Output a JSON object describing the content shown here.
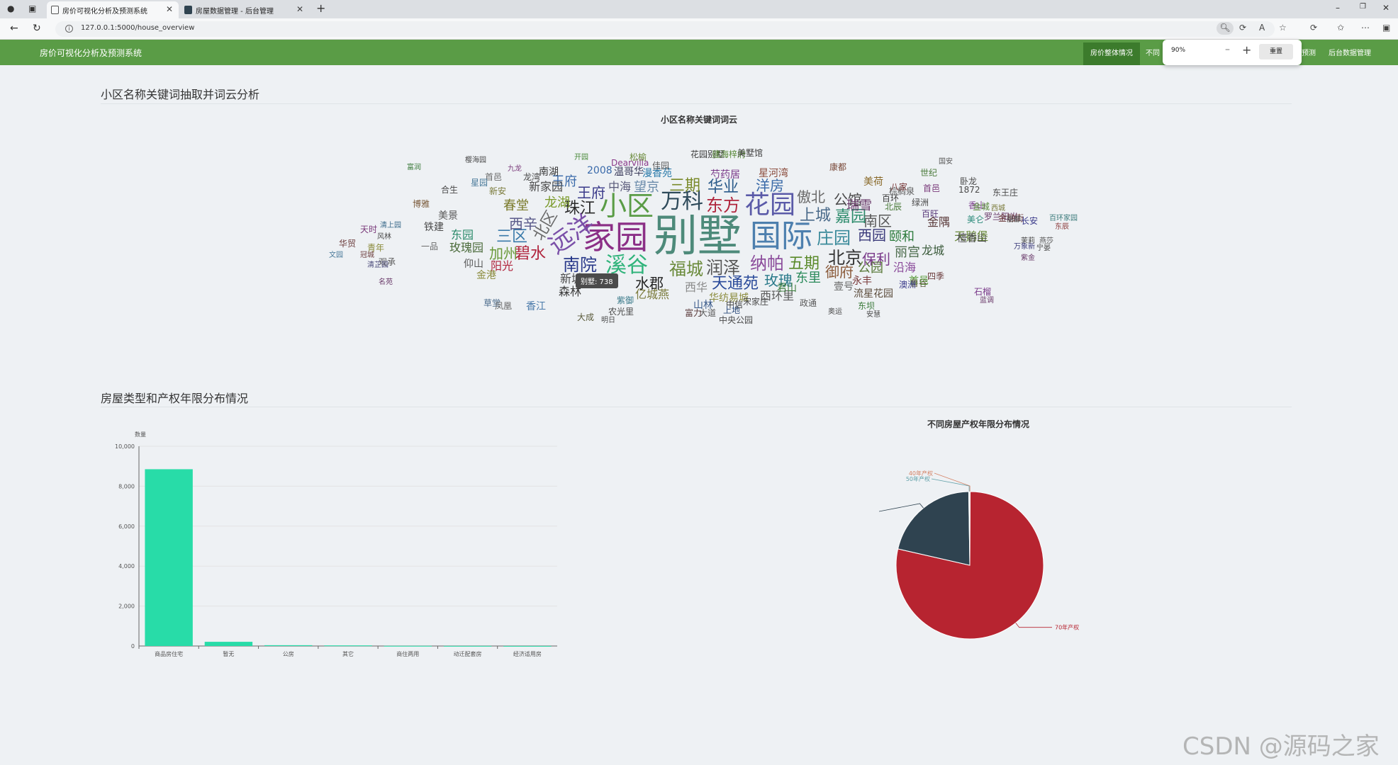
{
  "browser": {
    "tabs": [
      {
        "label": "房价可视化分析及预测系统"
      },
      {
        "label": "房屋数据管理 - 后台管理"
      }
    ],
    "url": "127.0.0.1:5000/house_overview",
    "zoom": {
      "percent": "90%",
      "reset_label": "重置"
    }
  },
  "app": {
    "brand": "房价可视化分析及预测系统",
    "menu": [
      "房价整体情况",
      "不同",
      "预测",
      "后台数据管理"
    ]
  },
  "section1": {
    "title": "小区名称关键词抽取并词云分析",
    "chart_title": "小区名称关键词词云",
    "tooltip": "别墅: 738"
  },
  "section2": {
    "title": "房屋类型和产权年限分布情况"
  },
  "wordcloud": [
    {
      "t": "别墅",
      "c": "#4d8a7a"
    },
    {
      "t": "家园",
      "c": "#8b2f86"
    },
    {
      "t": "国际",
      "c": "#4d7fae"
    },
    {
      "t": "小区",
      "c": "#5a9c46"
    },
    {
      "t": "花园",
      "c": "#5a5aa8"
    },
    {
      "t": "万科",
      "c": "#2e4a5a"
    },
    {
      "t": "东方",
      "c": "#b0243c"
    },
    {
      "t": "溪谷",
      "c": "#2fb37a"
    },
    {
      "t": "远洋",
      "c": "#7a4fa8"
    },
    {
      "t": "庄园",
      "c": "#3a8a9a"
    },
    {
      "t": "北京",
      "c": "#333333"
    },
    {
      "t": "纳帕",
      "c": "#8a4a9a"
    },
    {
      "t": "润泽",
      "c": "#555555"
    },
    {
      "t": "福城",
      "c": "#6a8a3a"
    },
    {
      "t": "南院",
      "c": "#2a3a8a"
    },
    {
      "t": "上城",
      "c": "#4a6a8a"
    },
    {
      "t": "嘉园",
      "c": "#2a8a6a"
    },
    {
      "t": "五期",
      "c": "#5a8a2a"
    },
    {
      "t": "天通苑",
      "c": "#2a4a9a"
    },
    {
      "t": "三区",
      "c": "#3a7aaa"
    },
    {
      "t": "北区",
      "c": "#6a6a6a"
    },
    {
      "t": "珠江",
      "c": "#2a2a2a"
    },
    {
      "t": "碧水",
      "c": "#b0243c"
    },
    {
      "t": "加州",
      "c": "#6a9a3a"
    },
    {
      "t": "华业",
      "c": "#2a5a8a"
    },
    {
      "t": "三期",
      "c": "#7a8a2a"
    },
    {
      "t": "洋房",
      "c": "#3a6aa8"
    },
    {
      "t": "傲北",
      "c": "#6a6a6a"
    },
    {
      "t": "公馆",
      "c": "#4a4a4a"
    },
    {
      "t": "保利",
      "c": "#7a3a8a"
    },
    {
      "t": "西园",
      "c": "#3a3a7a"
    },
    {
      "t": "南区",
      "c": "#5a5a5a"
    },
    {
      "t": "玫瑰",
      "c": "#2a7a8a"
    },
    {
      "t": "御府",
      "c": "#8a5a3a"
    },
    {
      "t": "公园",
      "c": "#5a7a3a"
    },
    {
      "t": "水郡",
      "c": "#222222"
    },
    {
      "t": "东里",
      "c": "#2a8a5a"
    },
    {
      "t": "丽宫",
      "c": "#4a6a4a"
    },
    {
      "t": "颐和",
      "c": "#2a7a3a"
    },
    {
      "t": "龙城",
      "c": "#3a5a3a"
    },
    {
      "t": "金隅",
      "c": "#5a3a3a"
    },
    {
      "t": "玉府",
      "c": "#3a6aaa"
    },
    {
      "t": "王府",
      "c": "#3a3a8a"
    },
    {
      "t": "望京",
      "c": "#6a8aaa"
    },
    {
      "t": "中海",
      "c": "#5a5a7a"
    },
    {
      "t": "龙湖",
      "c": "#7a9a2a"
    },
    {
      "t": "西辛",
      "c": "#5a5a8a"
    },
    {
      "t": "春堂",
      "c": "#7a7a2a"
    },
    {
      "t": "新家园",
      "c": "#4a4a4a"
    },
    {
      "t": "天鹅堡",
      "c": "#6a8a3a"
    },
    {
      "t": "檀香山",
      "c": "#4a4a4a"
    },
    {
      "t": "瑞雪",
      "c": "#6a3a6a"
    },
    {
      "t": "沿海",
      "c": "#8a4a9a"
    },
    {
      "t": "首邑",
      "c": "#5a9a3a"
    },
    {
      "t": "西华",
      "c": "#8a8a8a"
    },
    {
      "t": "亿城燕",
      "c": "#7a7a3a"
    },
    {
      "t": "森林",
      "c": "#3a3a3a"
    },
    {
      "t": "新城",
      "c": "#4a4a4a"
    },
    {
      "t": "阳光",
      "c": "#b0243c"
    },
    {
      "t": "玫瑰园",
      "c": "#4a6a3a"
    },
    {
      "t": "铁建",
      "c": "#4a4a4a"
    },
    {
      "t": "东园",
      "c": "#2a8a6a"
    },
    {
      "t": "美景",
      "c": "#5a5a5a"
    },
    {
      "t": "香江",
      "c": "#4a7aaa"
    },
    {
      "t": "永丰",
      "c": "#7a3a3a"
    },
    {
      "t": "西环里",
      "c": "#5a5a5a"
    },
    {
      "t": "君山",
      "c": "#3a7a3a"
    },
    {
      "t": "壹号",
      "c": "#6a6a6a"
    },
    {
      "t": "流星花园",
      "c": "#5a4a3a"
    },
    {
      "t": "华纺易城",
      "c": "#8a8a3a"
    },
    {
      "t": "山林",
      "c": "#3a5a8a"
    },
    {
      "t": "富力",
      "c": "#5a3a3a"
    },
    {
      "t": "2008",
      "c": "#3a6aaa"
    },
    {
      "t": "Dearvilla",
      "c": "#8a3a8a"
    },
    {
      "t": "漫香苑",
      "c": "#2a7aaa"
    },
    {
      "t": "温哥华",
      "c": "#3a3a5a"
    },
    {
      "t": "芍药居",
      "c": "#7a3a8a"
    },
    {
      "t": "星河湾",
      "c": "#8a4a3a"
    },
    {
      "t": "北辰",
      "c": "#4a7a3a"
    },
    {
      "t": "棕榈泉",
      "c": "#5a5a5a"
    },
    {
      "t": "1872",
      "c": "#4a4a4a"
    },
    {
      "t": "香山",
      "c": "#7a3a8a"
    },
    {
      "t": "中央公园",
      "c": "#4a4a4a"
    },
    {
      "t": "大道",
      "c": "#5a5a5a"
    },
    {
      "t": "农光里",
      "c": "#4a4a4a"
    },
    {
      "t": "紫御",
      "c": "#3a7a8a"
    },
    {
      "t": "鲁谷",
      "c": "#5a5a3a"
    },
    {
      "t": "澳洲",
      "c": "#3a3a8a"
    },
    {
      "t": "四季",
      "c": "#6a3a3a"
    },
    {
      "t": "世纪",
      "c": "#4a7a3a"
    },
    {
      "t": "首邑",
      "c": "#7a3a7a"
    },
    {
      "t": "金港",
      "c": "#8a8a3a"
    },
    {
      "t": "仰山",
      "c": "#5a5a5a"
    },
    {
      "t": "草堂",
      "c": "#4a6a8a"
    },
    {
      "t": "上地",
      "c": "#2a4a7a"
    },
    {
      "t": "康都",
      "c": "#7a4a3a"
    },
    {
      "t": "美荷",
      "c": "#8a6a2a"
    },
    {
      "t": "八家",
      "c": "#7a3a3a"
    },
    {
      "t": "百环",
      "c": "#3a3a3a"
    },
    {
      "t": "绿洲",
      "c": "#4a4a4a"
    },
    {
      "t": "百旺",
      "c": "#5a3a7a"
    },
    {
      "t": "美仑",
      "c": "#2a8a7a"
    },
    {
      "t": "新安",
      "c": "#7a7a3a"
    },
    {
      "t": "首邑",
      "c": "#6a6a6a"
    },
    {
      "t": "星园",
      "c": "#4a7a9a"
    },
    {
      "t": "南湖",
      "c": "#3a3a3a"
    },
    {
      "t": "龙湾",
      "c": "#4a4a4a"
    },
    {
      "t": "松榆",
      "c": "#6a8a3a"
    },
    {
      "t": "佳园",
      "c": "#5a5a5a"
    },
    {
      "t": "花园别墅",
      "c": "#3a3a3a"
    },
    {
      "t": "建海梓府",
      "c": "#5a8a3a"
    },
    {
      "t": "美墅馆",
      "c": "#3a3a3a"
    },
    {
      "t": "卧龙",
      "c": "#4a4a4a"
    },
    {
      "t": "罗兰阳光",
      "c": "#6a3a6a"
    },
    {
      "t": "东王庄",
      "c": "#4a4a4a"
    },
    {
      "t": "金融街",
      "c": "#6a3a3a"
    },
    {
      "t": "长安",
      "c": "#3a3a8a"
    },
    {
      "t": "石榴",
      "c": "#7a3a8a"
    },
    {
      "t": "蓝调",
      "c": "#6a3a6a"
    },
    {
      "t": "宋家庄",
      "c": "#4a4a4a"
    },
    {
      "t": "政通",
      "c": "#5a5a5a"
    },
    {
      "t": "奥运",
      "c": "#4a4a4a"
    },
    {
      "t": "东坝",
      "c": "#3a7a3a"
    },
    {
      "t": "安慧",
      "c": "#4a4a4a"
    },
    {
      "t": "大成",
      "c": "#5a5a3a"
    },
    {
      "t": "明日",
      "c": "#4a4a4a"
    },
    {
      "t": "凤凰",
      "c": "#6a6a6a"
    },
    {
      "t": "中信",
      "c": "#3a3a3a"
    },
    {
      "t": "观承",
      "c": "#5a5a5a"
    },
    {
      "t": "清芷园",
      "c": "#4a4a7a"
    },
    {
      "t": "冠城",
      "c": "#6a3a3a"
    },
    {
      "t": "青年",
      "c": "#8a8a3a"
    },
    {
      "t": "风林",
      "c": "#4a4a4a"
    },
    {
      "t": "名苑",
      "c": "#6a3a6a"
    },
    {
      "t": "富润",
      "c": "#3a7a3a"
    },
    {
      "t": "樱海园",
      "c": "#4a4a4a"
    },
    {
      "t": "九龙",
      "c": "#7a3a7a"
    },
    {
      "t": "开园",
      "c": "#4a8a3a"
    },
    {
      "t": "国安",
      "c": "#5a5a5a"
    },
    {
      "t": "博雅",
      "c": "#7a5a3a"
    },
    {
      "t": "合生",
      "c": "#4a4a4a"
    },
    {
      "t": "华贸",
      "c": "#6a3a3a"
    },
    {
      "t": "文园",
      "c": "#4a7a9a"
    },
    {
      "t": "天时",
      "c": "#7a3a7a"
    },
    {
      "t": "清上园",
      "c": "#3a6a8a"
    },
    {
      "t": "一品",
      "c": "#6a6a6a"
    },
    {
      "t": "金城",
      "c": "#5a8a3a"
    },
    {
      "t": "西城",
      "c": "#7a7a3a"
    },
    {
      "t": "丽都",
      "c": "#4a4a4a"
    },
    {
      "t": "万象新",
      "c": "#3a3a7a"
    },
    {
      "t": "紫金",
      "c": "#6a3a6a"
    },
    {
      "t": "宁晏",
      "c": "#4a4a4a"
    },
    {
      "t": "燕莎",
      "c": "#5a5a5a"
    },
    {
      "t": "百环家园",
      "c": "#3a7a7a"
    },
    {
      "t": "东辰",
      "c": "#8a3a3a"
    },
    {
      "t": "茉莉",
      "c": "#4a4a4a"
    }
  ],
  "chart_data": [
    {
      "type": "bar",
      "title": "",
      "ylabel": "数量",
      "categories": [
        "商品房住宅",
        "暂无",
        "公房",
        "其它",
        "商住两用",
        "动迁配套房",
        "经济适用房"
      ],
      "values": [
        8850,
        210,
        40,
        30,
        8,
        5,
        3
      ],
      "ylim": [
        0,
        10000
      ],
      "yticks": [
        "0",
        "2,000",
        "4,000",
        "6,000",
        "8,000",
        "10,000"
      ],
      "grid": true,
      "color": "#28dca8"
    },
    {
      "type": "pie",
      "title": "不同房屋产权年限分布情况",
      "categories": [
        "70年产权",
        "暂无",
        "50年产权",
        "40年产权"
      ],
      "values": [
        78.5,
        21.2,
        0.2,
        0.1
      ],
      "colors": [
        "#b72430",
        "#2f4350",
        "#61a0a8",
        "#d48265"
      ]
    }
  ],
  "watermark": "CSDN @源码之家"
}
